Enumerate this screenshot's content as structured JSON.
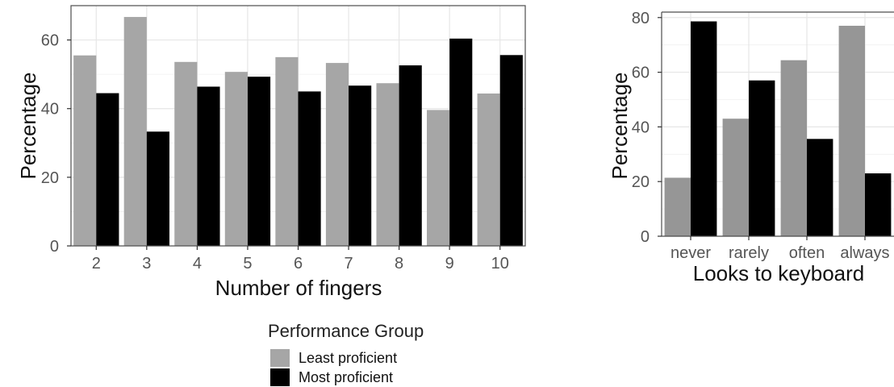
{
  "colors": {
    "least": "#a6a6a6",
    "least_right": "#969696",
    "most": "#000000",
    "grid": "#e6e6e6",
    "panel_border": "#4d4d4d"
  },
  "chart_data": [
    {
      "type": "bar",
      "xlabel": "Number of fingers",
      "ylabel": "Percentage",
      "categories": [
        "2",
        "3",
        "4",
        "5",
        "6",
        "7",
        "8",
        "9",
        "10"
      ],
      "ylim": [
        0,
        70
      ],
      "yticks": [
        0,
        20,
        40,
        60
      ],
      "grid": true,
      "series": [
        {
          "name": "Least proficient",
          "values": [
            55.5,
            66.7,
            53.6,
            50.7,
            55.0,
            53.3,
            47.4,
            39.6,
            44.4
          ]
        },
        {
          "name": "Most proficient",
          "values": [
            44.5,
            33.3,
            46.4,
            49.3,
            45.0,
            46.7,
            52.6,
            60.4,
            55.6
          ]
        }
      ]
    },
    {
      "type": "bar",
      "xlabel": "Looks to keyboard",
      "ylabel": "Percentage",
      "categories": [
        "never",
        "rarely",
        "often",
        "always"
      ],
      "ylim": [
        0,
        82
      ],
      "yticks": [
        0,
        20,
        40,
        60,
        80
      ],
      "grid": true,
      "series": [
        {
          "name": "Least proficient",
          "values": [
            21.4,
            43.0,
            64.4,
            77.0
          ]
        },
        {
          "name": "Most proficient",
          "values": [
            78.6,
            57.0,
            35.6,
            23.0
          ]
        }
      ]
    }
  ],
  "legend": {
    "title": "Performance Group",
    "items": [
      "Least proficient",
      "Most proficient"
    ],
    "position": "bottom"
  }
}
